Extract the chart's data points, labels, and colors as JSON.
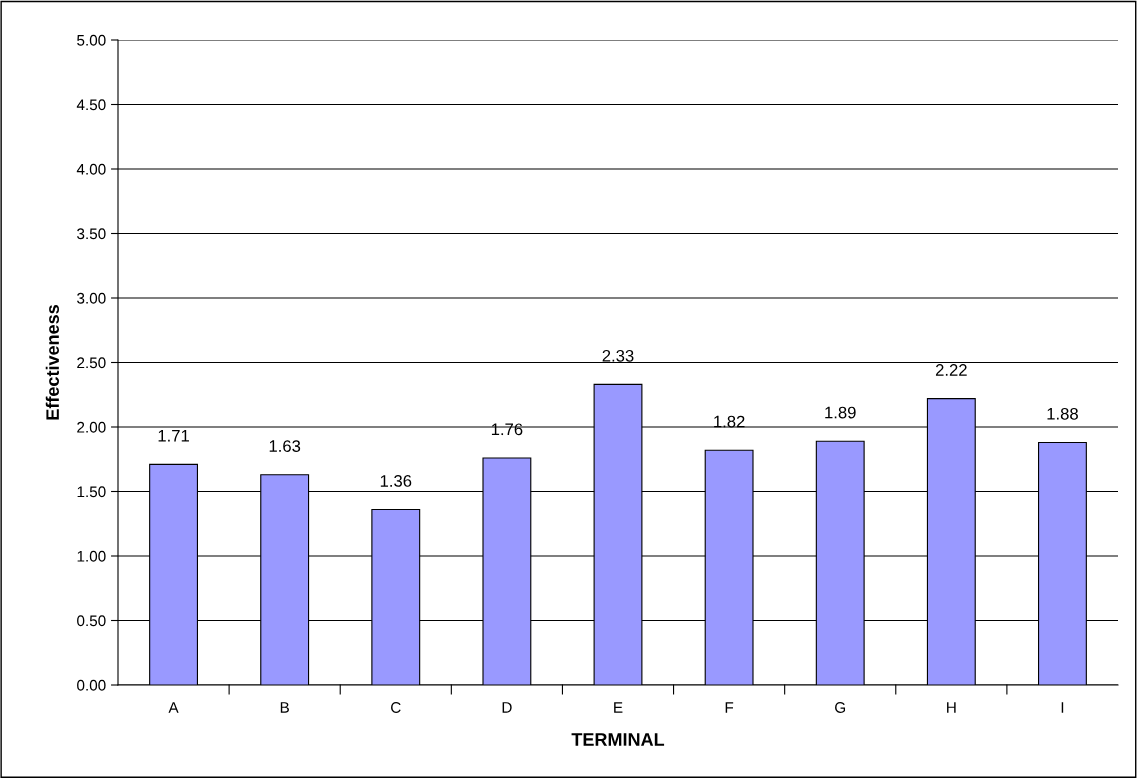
{
  "chart_data": {
    "type": "bar",
    "xlabel": "TERMINAL",
    "ylabel": "Effectiveness",
    "categories": [
      "A",
      "B",
      "C",
      "D",
      "E",
      "F",
      "G",
      "H",
      "I"
    ],
    "values": [
      1.71,
      1.63,
      1.36,
      1.76,
      2.33,
      1.82,
      1.89,
      2.22,
      1.88
    ],
    "color": "#9999ff",
    "data_labels": true,
    "grid": "y",
    "ylim": [
      0,
      5
    ],
    "yticks": [
      {
        "value": 0,
        "label": "0.00"
      },
      {
        "value": 0.5,
        "label": "0.50"
      },
      {
        "value": 1,
        "label": "1.00"
      },
      {
        "value": 1.5,
        "label": "1.50"
      },
      {
        "value": 2,
        "label": "2.00"
      },
      {
        "value": 2.5,
        "label": "2.50"
      },
      {
        "value": 3,
        "label": "3.00"
      },
      {
        "value": 3.5,
        "label": "3.50"
      },
      {
        "value": 4,
        "label": "4.00"
      },
      {
        "value": 4.5,
        "label": "4.50"
      },
      {
        "value": 5,
        "label": "5.00"
      }
    ]
  }
}
